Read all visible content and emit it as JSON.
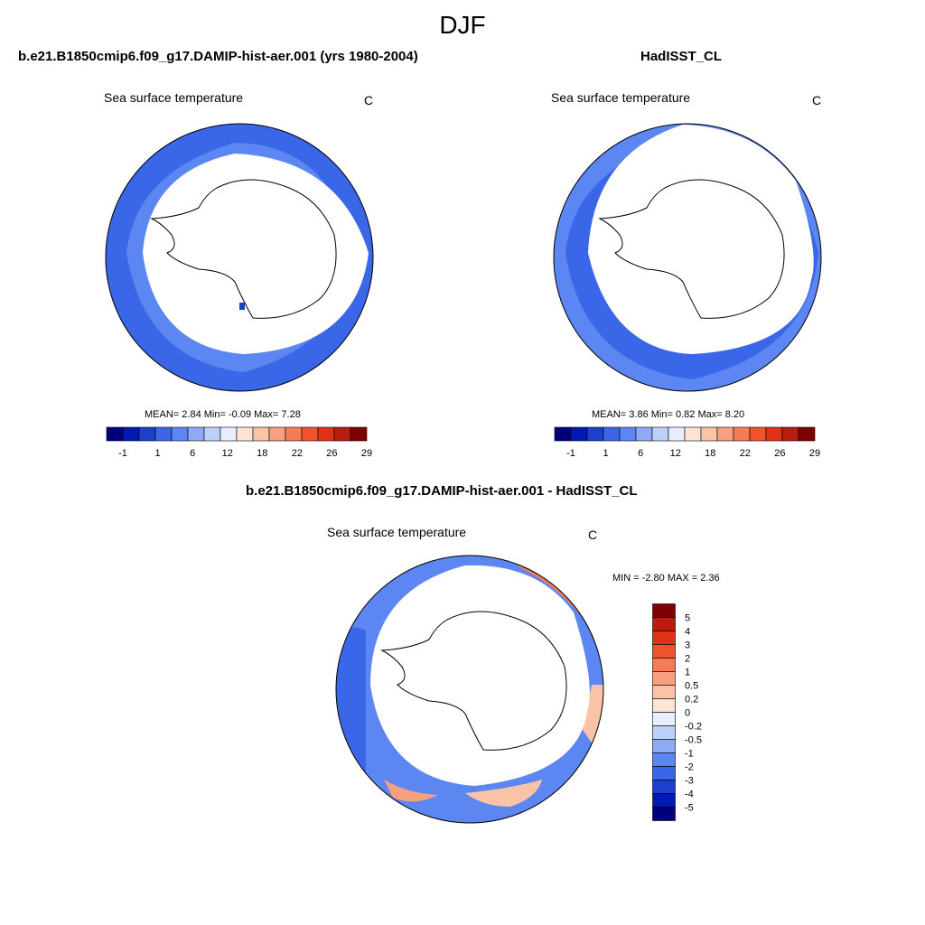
{
  "figure": {
    "season_title": "DJF"
  },
  "chart_data": [
    {
      "type": "heatmap",
      "projection": "south-polar stereographic",
      "title": "b.e21.B1850cmip6.f09_g17.DAMIP-hist-aer.001 (yrs 1980-2004)",
      "variable": "Sea surface temperature",
      "units": "C",
      "stats": {
        "mean_label": "MEAN=",
        "mean": "2.84",
        "min_label": "Min=",
        "min": "-0.09",
        "max_label": "Max=",
        "max": "7.28"
      },
      "colorbar": {
        "orientation": "horizontal",
        "tick_labels": [
          "-1",
          "1",
          "6",
          "12",
          "18",
          "22",
          "26",
          "29"
        ],
        "colors": [
          "#00007f",
          "#0019b3",
          "#1e3fcc",
          "#3a66e8",
          "#5c86f2",
          "#8eaaf5",
          "#bdd0f8",
          "#e8eefb",
          "#fde4d4",
          "#f9c3a8",
          "#f7a07e",
          "#f57c55",
          "#f0522e",
          "#df3318",
          "#b81d0e",
          "#7f0000"
        ]
      }
    },
    {
      "type": "heatmap",
      "projection": "south-polar stereographic",
      "title": "HadISST_CL",
      "variable": "Sea surface temperature",
      "units": "C",
      "stats": {
        "mean_label": "MEAN=",
        "mean": "3.86",
        "min_label": "Min=",
        "min": "0.82",
        "max_label": "Max=",
        "max": "8.20"
      },
      "colorbar": {
        "orientation": "horizontal",
        "tick_labels": [
          "-1",
          "1",
          "6",
          "12",
          "18",
          "22",
          "26",
          "29"
        ],
        "colors": [
          "#00007f",
          "#0019b3",
          "#1e3fcc",
          "#3a66e8",
          "#5c86f2",
          "#8eaaf5",
          "#bdd0f8",
          "#e8eefb",
          "#fde4d4",
          "#f9c3a8",
          "#f7a07e",
          "#f57c55",
          "#f0522e",
          "#df3318",
          "#b81d0e",
          "#7f0000"
        ]
      }
    },
    {
      "type": "heatmap",
      "projection": "south-polar stereographic",
      "title": "b.e21.B1850cmip6.f09_g17.DAMIP-hist-aer.001 - HadISST_CL",
      "variable": "Sea surface temperature",
      "units": "C",
      "stats": {
        "min_label": "MIN =",
        "min": "-2.80",
        "max_label": "MAX =",
        "max": "2.36"
      },
      "colorbar": {
        "orientation": "vertical",
        "tick_labels": [
          "5",
          "4",
          "3",
          "2",
          "1",
          "0.5",
          "0.2",
          "0",
          "-0.2",
          "-0.5",
          "-1",
          "-2",
          "-3",
          "-4",
          "-5"
        ],
        "colors": [
          "#7f0000",
          "#b81d0e",
          "#df3318",
          "#f0522e",
          "#f57c55",
          "#f7a07e",
          "#f9c3a8",
          "#fde4d4",
          "#e8eefb",
          "#bdd0f8",
          "#8eaaf5",
          "#5c86f2",
          "#3a66e8",
          "#1e3fcc",
          "#0019b3",
          "#00007f"
        ]
      }
    }
  ]
}
